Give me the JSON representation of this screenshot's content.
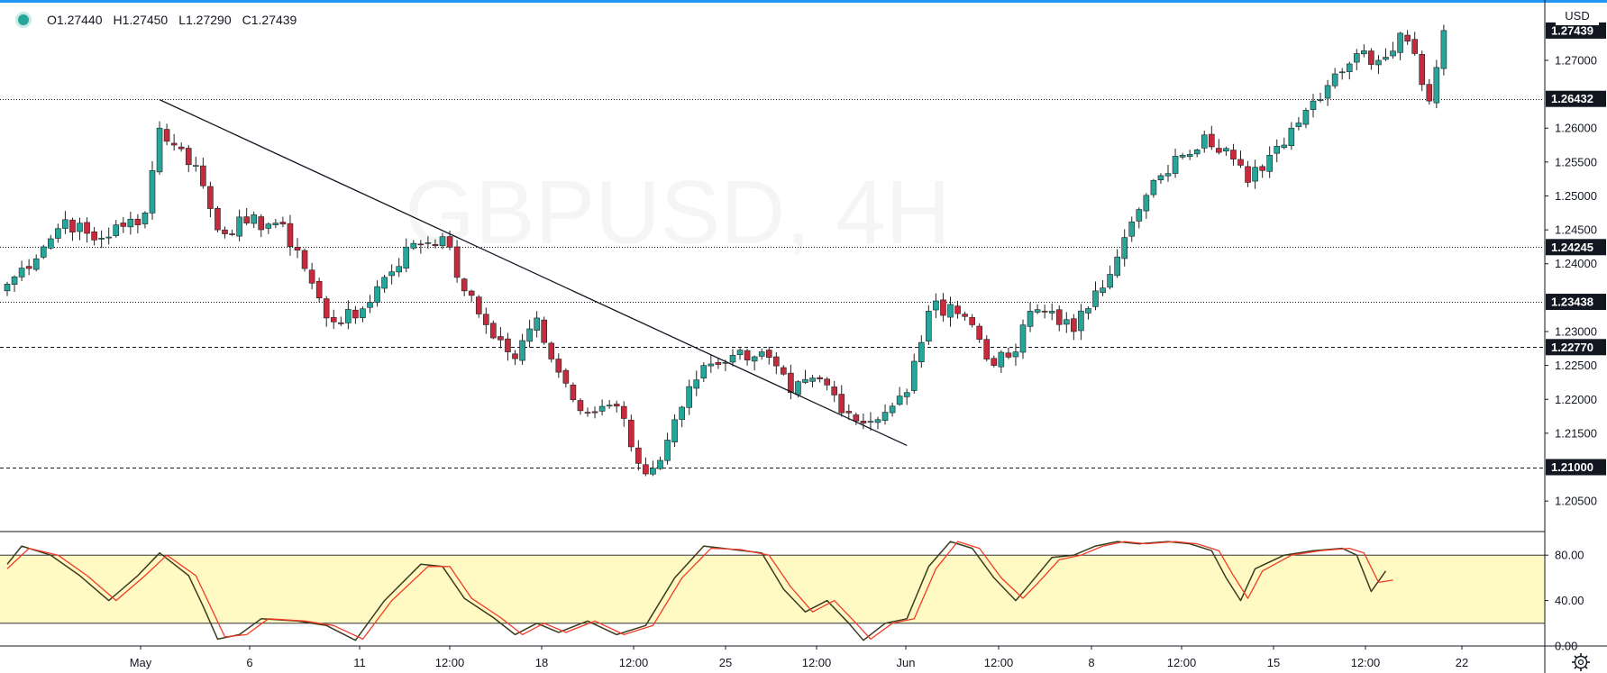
{
  "legend": {
    "open": "O1.27440",
    "high": "H1.27450",
    "low": "L1.27290",
    "close": "C1.27439"
  },
  "currency": "USD",
  "colors": {
    "up": "#26a69a",
    "down": "#c62a3c",
    "stoch_k": "#3b3b1e",
    "stoch_d": "#f23b27",
    "stoch_band": "#fff9c4",
    "accent": "#2196f3"
  },
  "chart_data": [
    {
      "type": "candlestick",
      "title": "",
      "ylabel": "USD",
      "ylim": [
        1.2005,
        1.2785
      ],
      "y_ticks": [
        "1.20500",
        "1.21500",
        "1.22000",
        "1.22500",
        "1.23000",
        "1.24000",
        "1.24500",
        "1.25000",
        "1.25500",
        "1.26000",
        "1.27000"
      ],
      "x_ticks": [
        "May",
        "6",
        "11",
        "12:00",
        "18",
        "12:00",
        "25",
        "12:00",
        "Jun",
        "12:00",
        "8",
        "12:00",
        "15",
        "12:00",
        "22"
      ],
      "bar_count": 220,
      "price_tags": [
        "1.27439",
        "1.26432",
        "1.24245",
        "1.23438",
        "1.22770",
        "1.21000"
      ],
      "horizontal_lines": [
        {
          "price": 1.26432,
          "style": "dotted"
        },
        {
          "price": 1.24245,
          "style": "dotted"
        },
        {
          "price": 1.23438,
          "style": "dotted"
        },
        {
          "price": 1.2277,
          "style": "dashed"
        },
        {
          "price": 1.21,
          "style": "dashed"
        }
      ],
      "trendline": {
        "from": {
          "bar": 21,
          "price": 1.2642
        },
        "to": {
          "bar": 124,
          "price": 1.2132
        }
      },
      "key_points": [
        [
          0,
          1.237
        ],
        [
          5,
          1.2425
        ],
        [
          8,
          1.2465
        ],
        [
          12,
          1.2435
        ],
        [
          16,
          1.2455
        ],
        [
          19,
          1.2475
        ],
        [
          21,
          1.26
        ],
        [
          23,
          1.2575
        ],
        [
          26,
          1.2545
        ],
        [
          29,
          1.245
        ],
        [
          33,
          1.246
        ],
        [
          37,
          1.246
        ],
        [
          40,
          1.242
        ],
        [
          44,
          1.232
        ],
        [
          48,
          1.232
        ],
        [
          52,
          1.238
        ],
        [
          56,
          1.243
        ],
        [
          60,
          1.244
        ],
        [
          63,
          1.236
        ],
        [
          66,
          1.231
        ],
        [
          70,
          1.226
        ],
        [
          73,
          1.232
        ],
        [
          76,
          1.224
        ],
        [
          80,
          1.218
        ],
        [
          84,
          1.219
        ],
        [
          86,
          1.213
        ],
        [
          88,
          1.209
        ],
        [
          90,
          1.211
        ],
        [
          92,
          1.217
        ],
        [
          96,
          1.225
        ],
        [
          100,
          1.2265
        ],
        [
          104,
          1.227
        ],
        [
          108,
          1.221
        ],
        [
          112,
          1.223
        ],
        [
          116,
          1.218
        ],
        [
          118,
          1.2165
        ],
        [
          122,
          1.219
        ],
        [
          124,
          1.221
        ],
        [
          127,
          1.233
        ],
        [
          130,
          1.234
        ],
        [
          133,
          1.231
        ],
        [
          136,
          1.225
        ],
        [
          139,
          1.227
        ],
        [
          141,
          1.233
        ],
        [
          144,
          1.233
        ],
        [
          147,
          1.23
        ],
        [
          150,
          1.236
        ],
        [
          153,
          1.241
        ],
        [
          156,
          1.248
        ],
        [
          159,
          1.253
        ],
        [
          162,
          1.256
        ],
        [
          165,
          1.259
        ],
        [
          168,
          1.257
        ],
        [
          171,
          1.252
        ],
        [
          174,
          1.256
        ],
        [
          177,
          1.26
        ],
        [
          180,
          1.264
        ],
        [
          183,
          1.268
        ],
        [
          186,
          1.271
        ],
        [
          189,
          1.27
        ],
        [
          192,
          1.274
        ],
        [
          194,
          1.271
        ],
        [
          196,
          1.264
        ],
        [
          198,
          1.2744
        ]
      ]
    },
    {
      "type": "line",
      "title": "",
      "ylim": [
        0,
        100
      ],
      "y_ticks": [
        "80.00",
        "40.00",
        "0.00"
      ],
      "band": [
        20,
        80
      ],
      "series": [
        {
          "key_points": [
            [
              0,
              72
            ],
            [
              2,
              88
            ],
            [
              6,
              80
            ],
            [
              10,
              62
            ],
            [
              14,
              40
            ],
            [
              18,
              62
            ],
            [
              21,
              82
            ],
            [
              25,
              62
            ],
            [
              27,
              35
            ],
            [
              29,
              6
            ],
            [
              32,
              10
            ],
            [
              35,
              24
            ],
            [
              40,
              22
            ],
            [
              44,
              18
            ],
            [
              48,
              5
            ],
            [
              52,
              40
            ],
            [
              57,
              72
            ],
            [
              60,
              70
            ],
            [
              63,
              42
            ],
            [
              67,
              25
            ],
            [
              70,
              10
            ],
            [
              73,
              20
            ],
            [
              76,
              12
            ],
            [
              80,
              22
            ],
            [
              84,
              10
            ],
            [
              88,
              18
            ],
            [
              92,
              60
            ],
            [
              96,
              88
            ],
            [
              100,
              85
            ],
            [
              104,
              82
            ],
            [
              107,
              50
            ],
            [
              110,
              30
            ],
            [
              113,
              40
            ],
            [
              116,
              20
            ],
            [
              118,
              5
            ],
            [
              121,
              20
            ],
            [
              124,
              24
            ],
            [
              127,
              70
            ],
            [
              130,
              92
            ],
            [
              133,
              86
            ],
            [
              136,
              60
            ],
            [
              139,
              40
            ],
            [
              141,
              55
            ],
            [
              144,
              78
            ],
            [
              147,
              80
            ],
            [
              150,
              88
            ],
            [
              153,
              92
            ],
            [
              156,
              90
            ],
            [
              160,
              92
            ],
            [
              163,
              90
            ],
            [
              166,
              84
            ],
            [
              168,
              60
            ],
            [
              170,
              40
            ],
            [
              172,
              68
            ],
            [
              176,
              80
            ],
            [
              180,
              84
            ],
            [
              184,
              86
            ],
            [
              186,
              80
            ],
            [
              188,
              48
            ],
            [
              190,
              66
            ]
          ]
        },
        {
          "key_points": [
            [
              0,
              68
            ],
            [
              3,
              86
            ],
            [
              7,
              80
            ],
            [
              11,
              62
            ],
            [
              15,
              40
            ],
            [
              19,
              62
            ],
            [
              22,
              80
            ],
            [
              26,
              62
            ],
            [
              28,
              35
            ],
            [
              30,
              8
            ],
            [
              33,
              10
            ],
            [
              36,
              24
            ],
            [
              41,
              22
            ],
            [
              45,
              18
            ],
            [
              49,
              6
            ],
            [
              53,
              40
            ],
            [
              58,
              70
            ],
            [
              61,
              70
            ],
            [
              64,
              42
            ],
            [
              68,
              25
            ],
            [
              71,
              10
            ],
            [
              74,
              20
            ],
            [
              77,
              12
            ],
            [
              81,
              22
            ],
            [
              85,
              10
            ],
            [
              89,
              18
            ],
            [
              93,
              60
            ],
            [
              97,
              86
            ],
            [
              101,
              85
            ],
            [
              105,
              80
            ],
            [
              108,
              52
            ],
            [
              111,
              30
            ],
            [
              114,
              40
            ],
            [
              117,
              20
            ],
            [
              119,
              6
            ],
            [
              122,
              20
            ],
            [
              125,
              24
            ],
            [
              128,
              68
            ],
            [
              131,
              92
            ],
            [
              134,
              86
            ],
            [
              137,
              60
            ],
            [
              140,
              42
            ],
            [
              142,
              55
            ],
            [
              145,
              76
            ],
            [
              148,
              80
            ],
            [
              151,
              88
            ],
            [
              154,
              92
            ],
            [
              157,
              90
            ],
            [
              161,
              92
            ],
            [
              164,
              90
            ],
            [
              167,
              84
            ],
            [
              169,
              62
            ],
            [
              171,
              42
            ],
            [
              173,
              66
            ],
            [
              177,
              80
            ],
            [
              181,
              84
            ],
            [
              185,
              86
            ],
            [
              187,
              82
            ],
            [
              189,
              56
            ],
            [
              191,
              58
            ]
          ]
        }
      ]
    }
  ]
}
